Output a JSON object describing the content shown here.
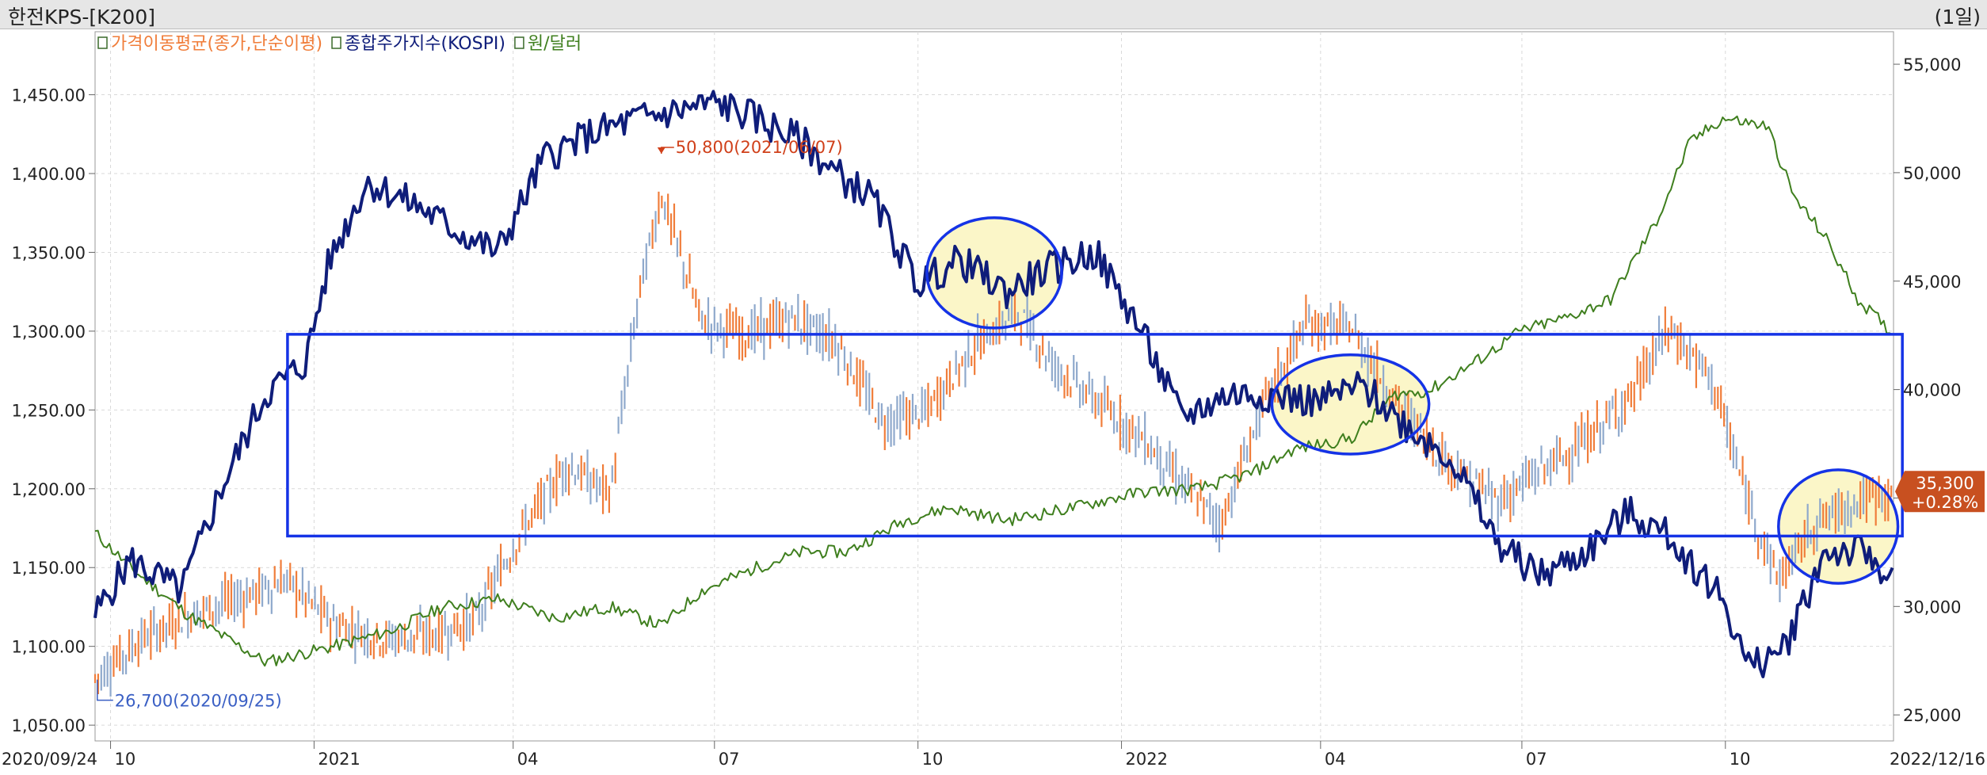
{
  "header": {
    "title": "한전KPS-[K200]",
    "period": "(1일)"
  },
  "colors": {
    "price_up": "#f07d3a",
    "price_down": "#8fa9cc",
    "kospi": "#0f1d7a",
    "usdkrw": "#3f7f1e",
    "highlight_box": "#1533e6",
    "highlight_fill": "#fbf6c8",
    "badge_bg": "#c85020",
    "max_annotation": "#d0401a",
    "min_annotation": "#3a5fc4"
  },
  "chart_data": {
    "type": "line",
    "x_range": [
      "2020/09/24",
      "2022/12/16"
    ],
    "x_ticks": [
      "10",
      "2021",
      "04",
      "07",
      "10",
      "2022",
      "04",
      "07",
      "10"
    ],
    "x_start_label": "2020/09/24",
    "x_end_label": "2022/12/16",
    "left_axis": {
      "range": [
        1040,
        1490
      ],
      "ticks": [
        "1,450.00",
        "1,400.00",
        "1,350.00",
        "1,300.00",
        "1,250.00",
        "1,200.00",
        "1,150.00",
        "1,100.00",
        "1,050.00"
      ]
    },
    "right_axis": {
      "range": [
        23800,
        56500
      ],
      "ticks": [
        "55,000",
        "50,000",
        "45,000",
        "40,000",
        "35,000",
        "30,000",
        "25,000"
      ]
    },
    "legend": [
      {
        "key": "ma",
        "label": "가격이동평균(종가,단순이평)"
      },
      {
        "key": "kospi",
        "label": "종합주가지수(KOSPI)"
      },
      {
        "key": "usdkrw",
        "label": "원/달러"
      }
    ],
    "series": [
      {
        "name": "종합주가지수(KOSPI)",
        "axis": "left",
        "dates": [
          "2020-09-24",
          "2020-10-10",
          "2020-11-02",
          "2020-11-20",
          "2020-12-10",
          "2020-12-28",
          "2021-01-08",
          "2021-01-25",
          "2021-02-16",
          "2021-03-05",
          "2021-03-25",
          "2021-04-15",
          "2021-05-06",
          "2021-05-28",
          "2021-06-15",
          "2021-07-02",
          "2021-07-20",
          "2021-08-10",
          "2021-08-25",
          "2021-09-10",
          "2021-10-01",
          "2021-10-20",
          "2021-11-10",
          "2021-11-30",
          "2021-12-20",
          "2022-01-10",
          "2022-01-28",
          "2022-02-18",
          "2022-03-10",
          "2022-03-30",
          "2022-04-20",
          "2022-05-10",
          "2022-05-30",
          "2022-06-20",
          "2022-07-10",
          "2022-07-30",
          "2022-08-18",
          "2022-09-05",
          "2022-09-30",
          "2022-10-12",
          "2022-10-28",
          "2022-11-15",
          "2022-12-01",
          "2022-12-16"
        ],
        "values": [
          1120,
          1155,
          1135,
          1200,
          1260,
          1280,
          1345,
          1395,
          1380,
          1365,
          1350,
          1410,
          1425,
          1435,
          1440,
          1445,
          1435,
          1420,
          1400,
          1385,
          1330,
          1345,
          1325,
          1340,
          1350,
          1300,
          1245,
          1260,
          1260,
          1255,
          1265,
          1240,
          1220,
          1165,
          1145,
          1160,
          1185,
          1170,
          1130,
          1085,
          1100,
          1160,
          1160,
          1145
        ]
      },
      {
        "name": "원/달러",
        "axis": "left",
        "dates": [
          "2020-09-24",
          "2020-10-10",
          "2020-11-05",
          "2020-12-10",
          "2021-01-10",
          "2021-02-05",
          "2021-02-28",
          "2021-03-25",
          "2021-04-20",
          "2021-05-15",
          "2021-06-07",
          "2021-06-25",
          "2021-07-20",
          "2021-08-10",
          "2021-08-30",
          "2021-09-25",
          "2021-10-15",
          "2021-11-10",
          "2021-12-10",
          "2022-01-10",
          "2022-02-05",
          "2022-03-01",
          "2022-03-20",
          "2022-04-15",
          "2022-05-05",
          "2022-05-20",
          "2022-06-15",
          "2022-06-30",
          "2022-07-20",
          "2022-08-10",
          "2022-08-31",
          "2022-09-15",
          "2022-09-30",
          "2022-10-20",
          "2022-11-01",
          "2022-11-15",
          "2022-11-30",
          "2022-12-16"
        ],
        "values": [
          1172,
          1150,
          1120,
          1090,
          1100,
          1110,
          1125,
          1130,
          1118,
          1125,
          1113,
          1135,
          1150,
          1160,
          1160,
          1180,
          1188,
          1180,
          1188,
          1198,
          1200,
          1210,
          1225,
          1232,
          1260,
          1262,
          1285,
          1300,
          1308,
          1320,
          1370,
          1420,
          1435,
          1430,
          1385,
          1360,
          1320,
          1298
        ]
      },
      {
        "name": "가격이동평균(종가,단순이평)",
        "axis": "right",
        "dates": [
          "2020-09-24",
          "2020-10-15",
          "2020-11-10",
          "2020-12-01",
          "2020-12-20",
          "2021-01-10",
          "2021-02-01",
          "2021-02-25",
          "2021-03-15",
          "2021-04-05",
          "2021-04-25",
          "2021-05-15",
          "2021-05-28",
          "2021-06-07",
          "2021-06-25",
          "2021-07-15",
          "2021-08-05",
          "2021-08-25",
          "2021-09-15",
          "2021-10-05",
          "2021-10-25",
          "2021-11-15",
          "2021-12-01",
          "2021-12-20",
          "2022-01-10",
          "2022-01-30",
          "2022-02-15",
          "2022-03-05",
          "2022-03-25",
          "2022-04-15",
          "2022-05-05",
          "2022-05-25",
          "2022-06-20",
          "2022-07-10",
          "2022-07-30",
          "2022-08-20",
          "2022-09-05",
          "2022-09-25",
          "2022-10-10",
          "2022-10-25",
          "2022-11-10",
          "2022-11-28",
          "2022-12-16"
        ],
        "values": [
          26700,
          28500,
          29800,
          30500,
          31200,
          29200,
          28500,
          28700,
          29400,
          33500,
          36500,
          35200,
          44500,
          49000,
          43200,
          42500,
          43300,
          42200,
          38500,
          39000,
          41800,
          43600,
          41200,
          39500,
          37800,
          35500,
          33800,
          39000,
          43000,
          42800,
          39500,
          37000,
          34800,
          36300,
          37600,
          39800,
          42800,
          40500,
          35200,
          31200,
          33800,
          34800,
          35300
        ]
      }
    ],
    "annotations": [
      {
        "label": "50,800(2021/06/07)",
        "type": "max",
        "date": "2021-06-07",
        "value": 50800
      },
      {
        "label": "26,700(2020/09/25)",
        "type": "min",
        "date": "2020-09-25",
        "value": 26700
      }
    ],
    "current_badge": {
      "price": "35,300",
      "change": "+0.28%",
      "value": 35300
    },
    "highlight": {
      "box": {
        "x_from": "2020-12-20",
        "x_to": "2022-12-20",
        "y_from": 1170,
        "y_to": 1298
      },
      "ellipses": [
        {
          "x_from": "2021-10-05",
          "x_to": "2021-12-05",
          "y_from": 1302,
          "y_to": 1372
        },
        {
          "x_from": "2022-03-10",
          "x_to": "2022-05-20",
          "y_from": 1222,
          "y_to": 1285
        },
        {
          "x_from": "2022-10-25",
          "x_to": "2022-12-18",
          "y_from": 1140,
          "y_to": 1212
        }
      ]
    }
  }
}
